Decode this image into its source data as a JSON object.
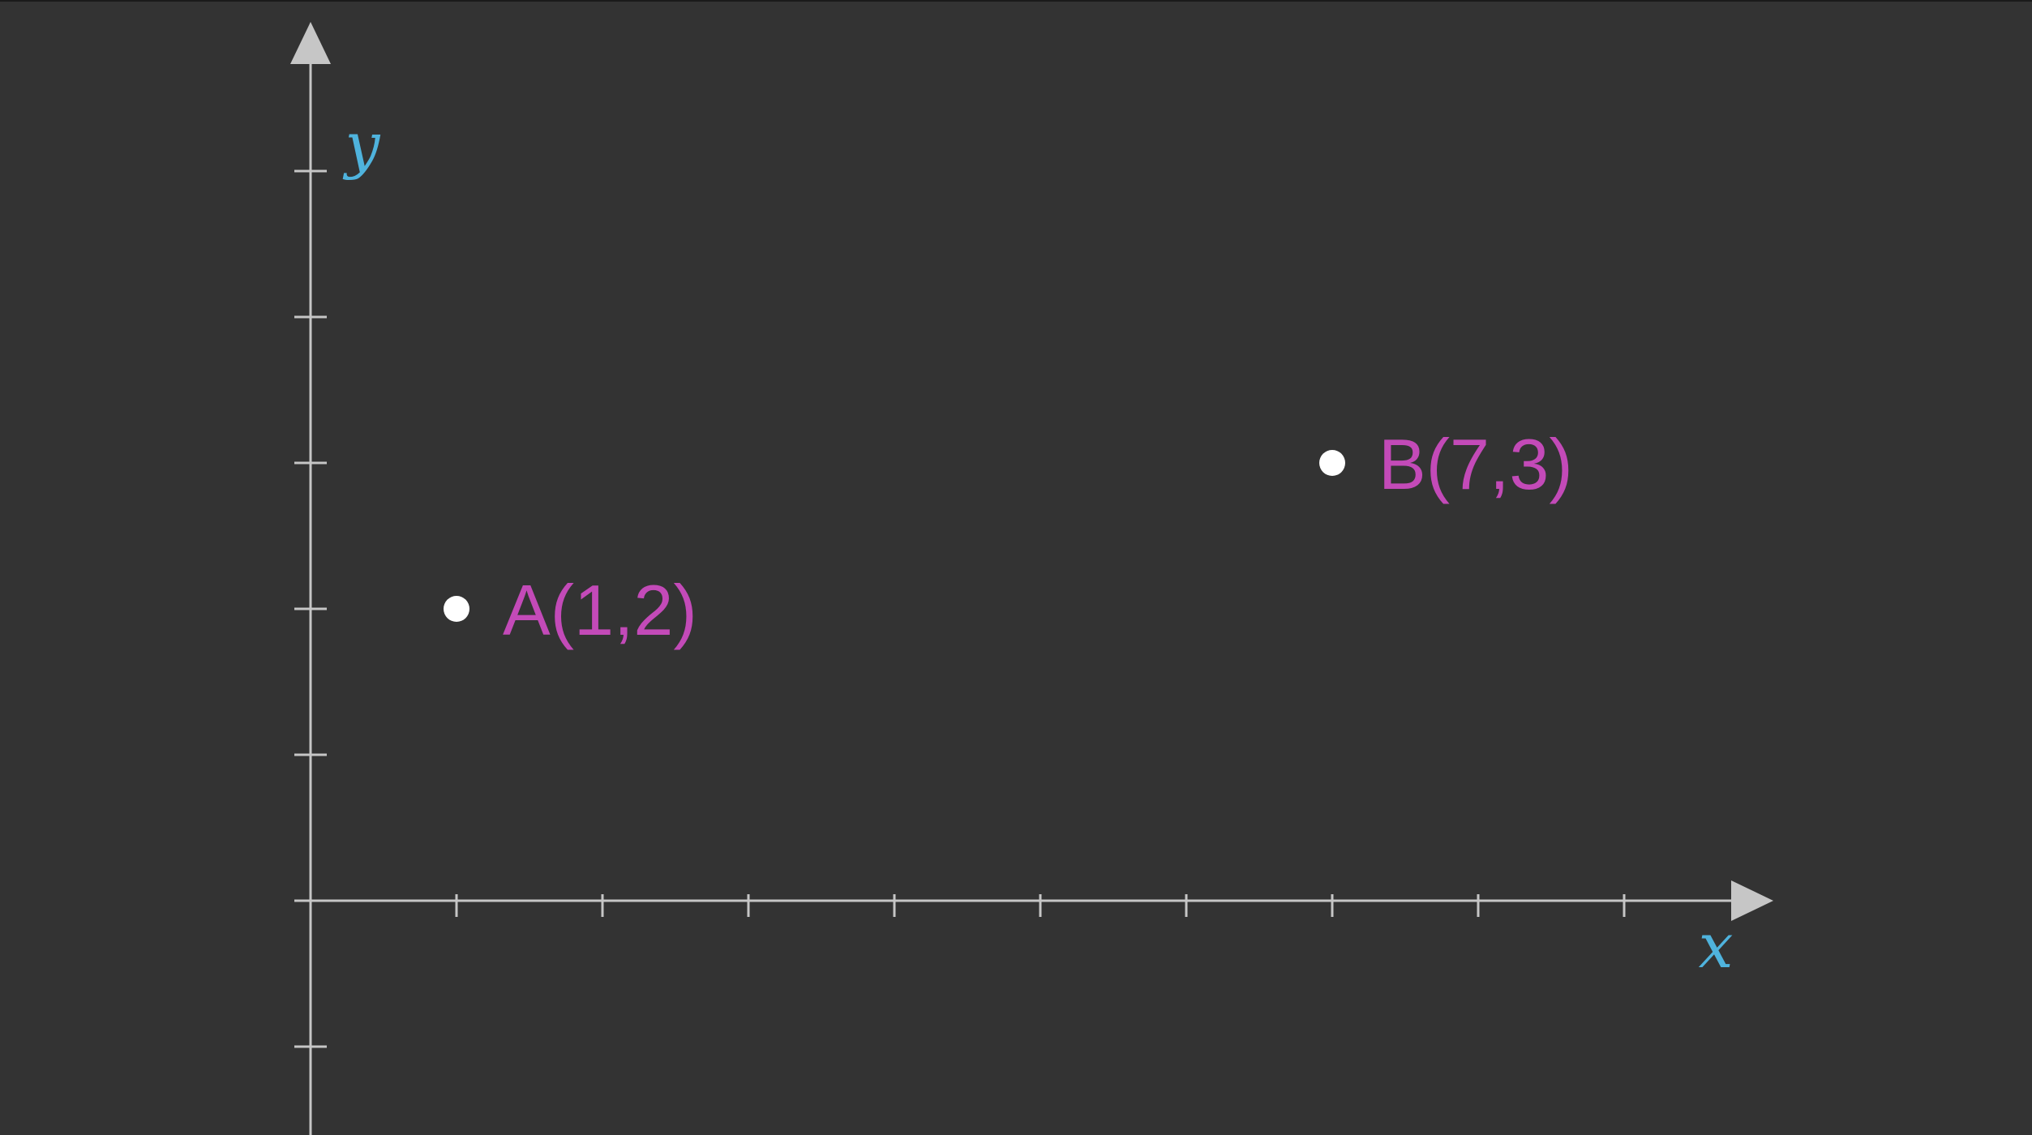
{
  "colors": {
    "background": "#333333",
    "axis": "#c6c6c6",
    "point": "#ffffff",
    "point_label": "#c34ab8",
    "axis_name": "#4fb3dd"
  },
  "axes": {
    "x_name": "x",
    "y_name": "y",
    "x_range": [
      0,
      9
    ],
    "y_range": [
      -1,
      5
    ],
    "x_ticks": [
      1,
      2,
      3,
      4,
      5,
      6,
      7,
      8,
      9
    ],
    "y_ticks": [
      -1,
      1,
      2,
      3,
      4,
      5
    ]
  },
  "points": [
    {
      "name": "A",
      "x": 1,
      "y": 2,
      "label": "A(1,2)"
    },
    {
      "name": "B",
      "x": 7,
      "y": 3,
      "label": "B(7,3)"
    }
  ]
}
